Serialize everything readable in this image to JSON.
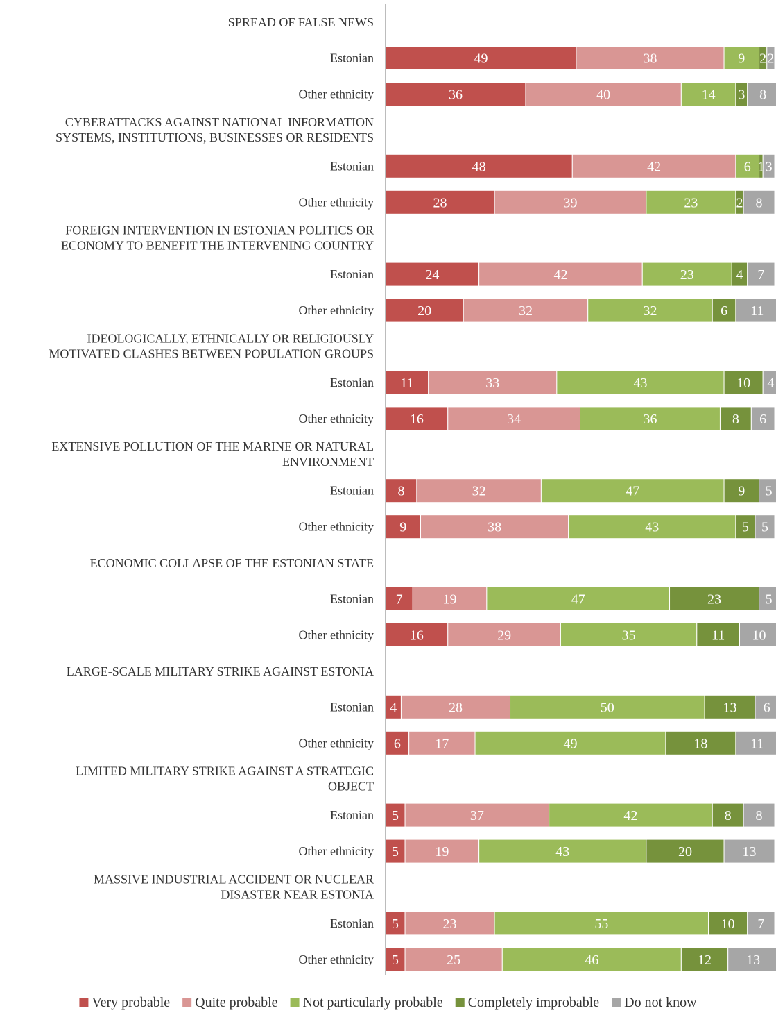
{
  "chart_data": {
    "type": "bar",
    "orientation": "horizontal",
    "stacked": true,
    "xlim": [
      0,
      100
    ],
    "legend_position": "bottom",
    "grid": false,
    "series": [
      {
        "name": "Very probable",
        "color": "#c0504d"
      },
      {
        "name": "Quite probable",
        "color": "#d99694"
      },
      {
        "name": "Not particularly probable",
        "color": "#9bbb59"
      },
      {
        "name": "Completely improbable",
        "color": "#76923c"
      },
      {
        "name": "Do not know",
        "color": "#a6a6a6"
      }
    ],
    "groups": [
      {
        "title_lines": [
          "SPREAD OF FALSE NEWS"
        ],
        "rows": [
          {
            "label": "Estonian",
            "values": [
              49,
              38,
              9,
              2,
              2
            ]
          },
          {
            "label": "Other ethnicity",
            "values": [
              36,
              40,
              14,
              3,
              8
            ]
          }
        ]
      },
      {
        "title_lines": [
          "CYBERATTACKS AGAINST NATIONAL INFORMATION",
          "SYSTEMS, INSTITUTIONS, BUSINESSES OR RESIDENTS"
        ],
        "rows": [
          {
            "label": "Estonian",
            "values": [
              48,
              42,
              6,
              1,
              3
            ]
          },
          {
            "label": "Other ethnicity",
            "values": [
              28,
              39,
              23,
              2,
              8
            ]
          }
        ]
      },
      {
        "title_lines": [
          "FOREIGN INTERVENTION IN ESTONIAN POLITICS OR",
          "ECONOMY TO BENEFIT THE INTERVENING COUNTRY"
        ],
        "rows": [
          {
            "label": "Estonian",
            "values": [
              24,
              42,
              23,
              4,
              7
            ]
          },
          {
            "label": "Other ethnicity",
            "values": [
              20,
              32,
              32,
              6,
              11
            ]
          }
        ]
      },
      {
        "title_lines": [
          "IDEOLOGICALLY, ETHNICALLY OR RELIGIOUSLY",
          "MOTIVATED CLASHES BETWEEN POPULATION GROUPS"
        ],
        "rows": [
          {
            "label": "Estonian",
            "values": [
              11,
              33,
              43,
              10,
              4
            ]
          },
          {
            "label": "Other ethnicity",
            "values": [
              16,
              34,
              36,
              8,
              6
            ]
          }
        ]
      },
      {
        "title_lines": [
          "EXTENSIVE POLLUTION OF THE MARINE OR NATURAL",
          "ENVIRONMENT"
        ],
        "rows": [
          {
            "label": "Estonian",
            "values": [
              8,
              32,
              47,
              9,
              5
            ]
          },
          {
            "label": "Other ethnicity",
            "values": [
              9,
              38,
              43,
              5,
              5
            ]
          }
        ]
      },
      {
        "title_lines": [
          "ECONOMIC COLLAPSE OF THE ESTONIAN STATE"
        ],
        "rows": [
          {
            "label": "Estonian",
            "values": [
              7,
              19,
              47,
              23,
              5
            ]
          },
          {
            "label": "Other ethnicity",
            "values": [
              16,
              29,
              35,
              11,
              10
            ]
          }
        ]
      },
      {
        "title_lines": [
          "LARGE-SCALE MILITARY STRIKE AGAINST ESTONIA"
        ],
        "rows": [
          {
            "label": "Estonian",
            "values": [
              4,
              28,
              50,
              13,
              6
            ]
          },
          {
            "label": "Other ethnicity",
            "values": [
              6,
              17,
              49,
              18,
              11
            ]
          }
        ]
      },
      {
        "title_lines": [
          "LIMITED MILITARY STRIKE AGAINST A STRATEGIC",
          "OBJECT"
        ],
        "rows": [
          {
            "label": "Estonian",
            "values": [
              5,
              37,
              42,
              8,
              8
            ]
          },
          {
            "label": "Other ethnicity",
            "values": [
              5,
              19,
              43,
              20,
              13
            ]
          }
        ]
      },
      {
        "title_lines": [
          "MASSIVE INDUSTRIAL ACCIDENT OR NUCLEAR",
          "DISASTER NEAR ESTONIA"
        ],
        "rows": [
          {
            "label": "Estonian",
            "values": [
              5,
              23,
              55,
              10,
              7
            ]
          },
          {
            "label": "Other ethnicity",
            "values": [
              5,
              25,
              46,
              12,
              13
            ]
          }
        ]
      }
    ]
  }
}
